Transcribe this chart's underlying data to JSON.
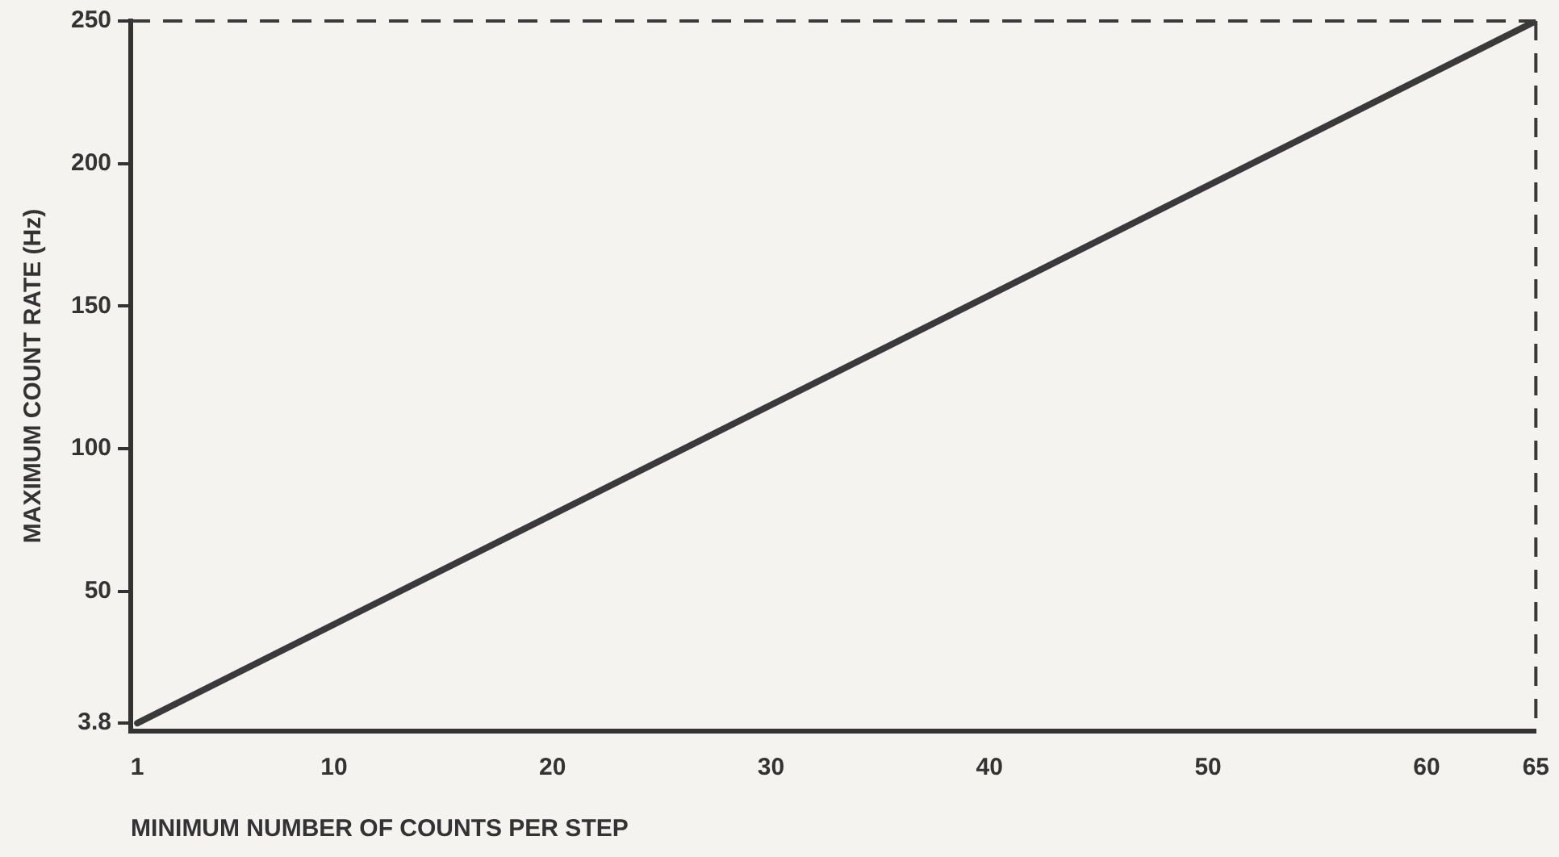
{
  "chart_data": {
    "type": "line",
    "xlabel": "MINIMUM NUMBER OF COUNTS PER STEP",
    "ylabel": "MAXIMUM COUNT RATE (Hz)",
    "x": [
      1,
      65
    ],
    "series": [
      {
        "color": "#3a3a3a",
        "values": [
          3.8,
          250
        ]
      }
    ],
    "xlim": [
      0.7,
      65
    ],
    "xticks": [
      1,
      10,
      20,
      30,
      40,
      50,
      60,
      65
    ],
    "ylim": [
      1,
      250
    ],
    "yticks": [
      3.8,
      50,
      100,
      150,
      200,
      250
    ],
    "ref_lines": [
      {
        "axis": "y",
        "value": 250,
        "line_style": "dashed",
        "color": "#3a3a3a"
      },
      {
        "axis": "x",
        "value": 65,
        "line_style": "dashed",
        "color": "#3a3a3a"
      }
    ],
    "grid": false,
    "legend": false,
    "marker": "none",
    "line_style": "solid"
  }
}
